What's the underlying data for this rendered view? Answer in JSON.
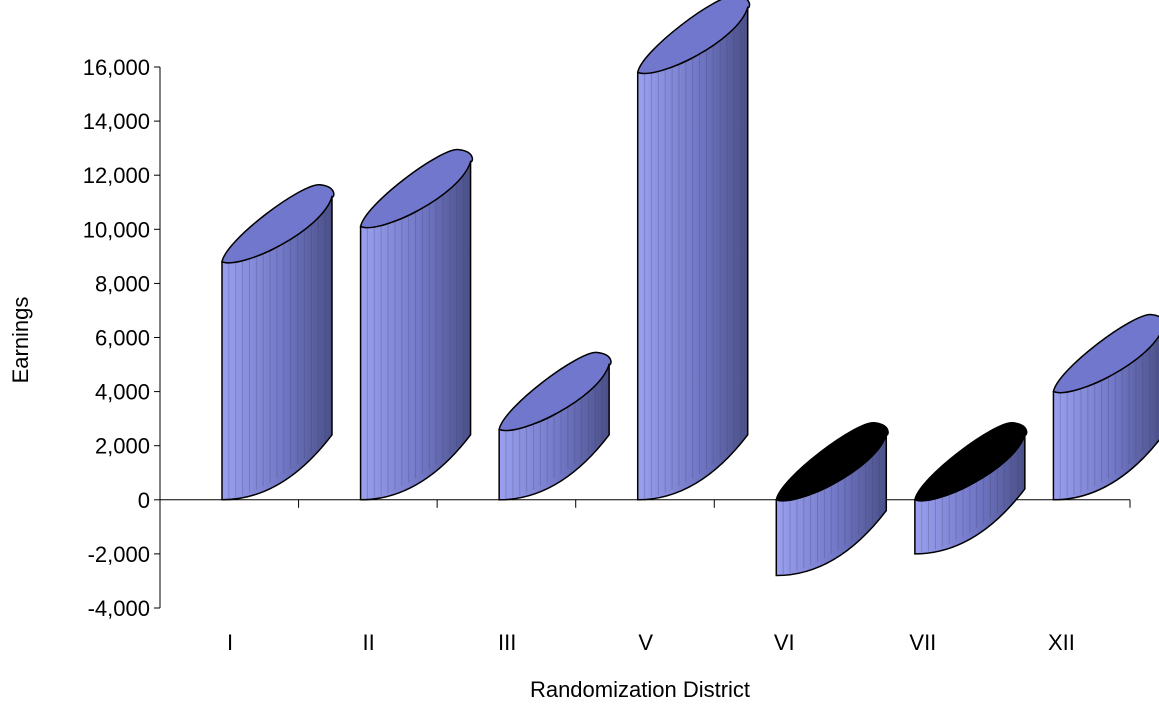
{
  "chart_data": {
    "type": "bar",
    "style": "3d-cylinder",
    "categories": [
      "I",
      "II",
      "III",
      "V",
      "VI",
      "VII",
      "XII"
    ],
    "values": [
      8800,
      10100,
      2600,
      15800,
      -2800,
      -2000,
      4000
    ],
    "xlabel": "Randomization District",
    "ylabel": "Earnings",
    "ylim": [
      -4000,
      16000
    ],
    "yticks": [
      -4000,
      -2000,
      0,
      2000,
      4000,
      6000,
      8000,
      10000,
      12000,
      14000,
      16000
    ],
    "ytick_labels": [
      "-4,000",
      "-2,000",
      "0",
      "2,000",
      "4,000",
      "6,000",
      "8,000",
      "10,000",
      "12,000",
      "14,000",
      "16,000"
    ],
    "grid": false,
    "legend": "none",
    "colors": {
      "bar_front": "#8f95e6",
      "bar_side": "#585e9a",
      "bar_top": "#7177cc",
      "bar_top_negative": "#000000",
      "outline": "#000000"
    }
  }
}
